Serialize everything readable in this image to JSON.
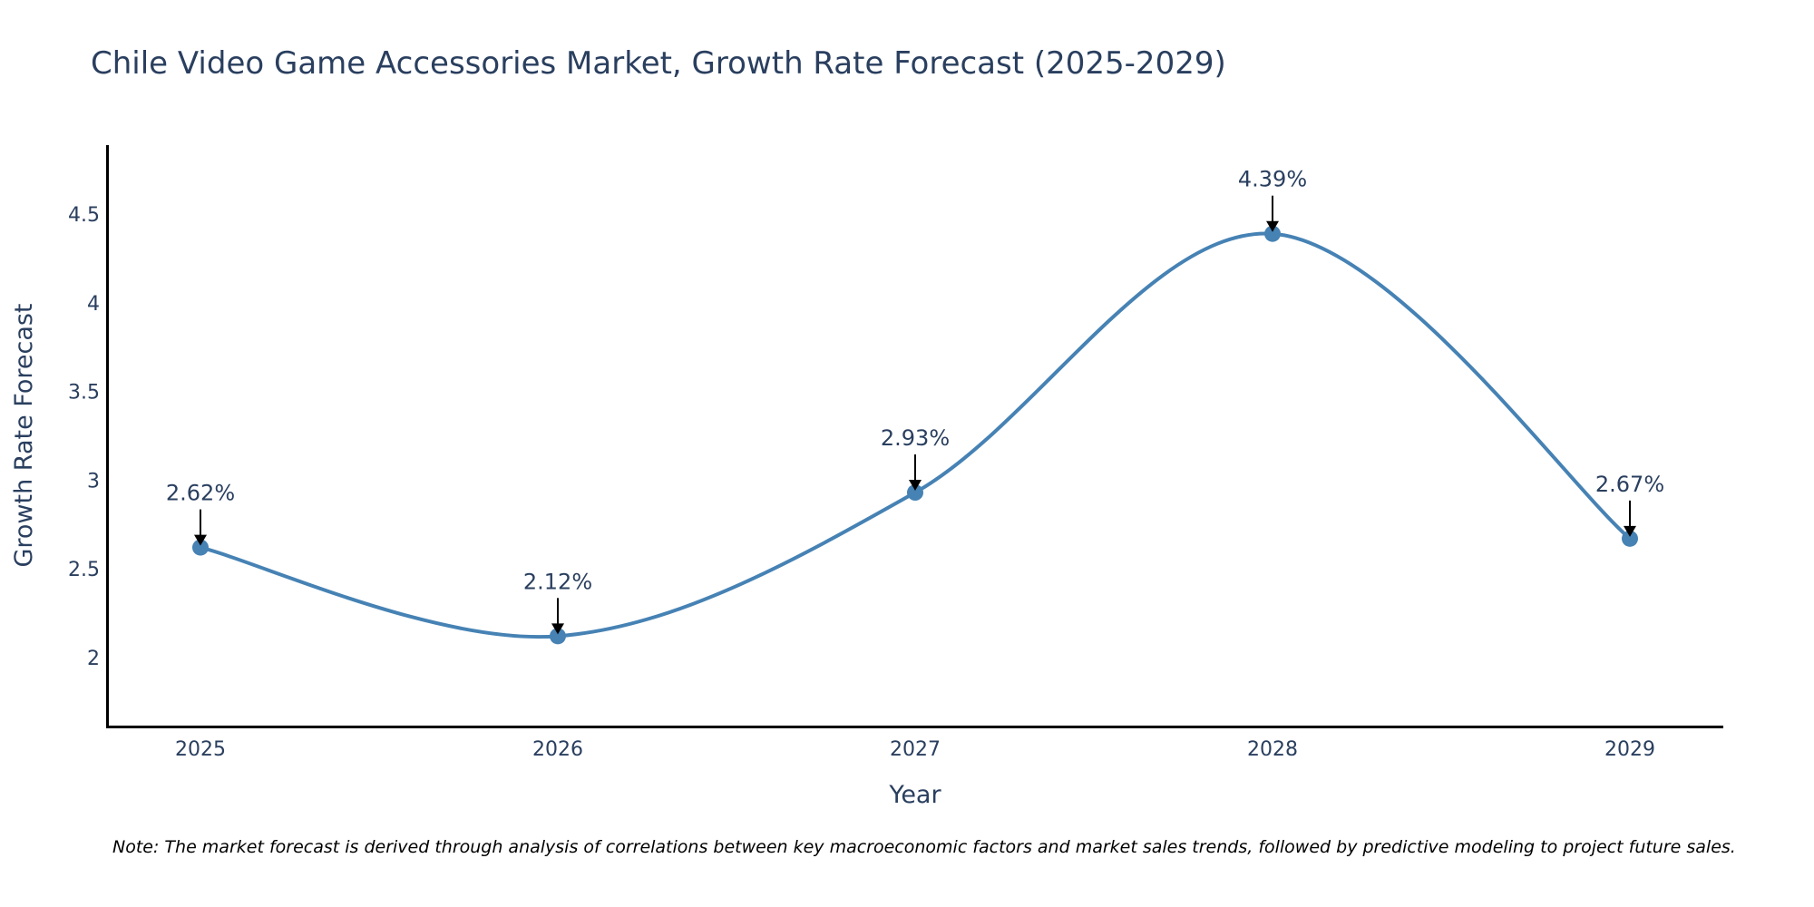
{
  "chart_data": {
    "type": "line",
    "title": "Chile Video Game Accessories Market, Growth Rate Forecast (2025-2029)",
    "xlabel": "Year",
    "ylabel": "Growth Rate Forecast",
    "categories": [
      "2025",
      "2026",
      "2027",
      "2028",
      "2029"
    ],
    "values": [
      2.62,
      2.12,
      2.93,
      4.39,
      2.67
    ],
    "data_labels": [
      "2.62%",
      "2.12%",
      "2.93%",
      "4.39%",
      "2.67%"
    ],
    "y_ticks": [
      2,
      2.5,
      3,
      3.5,
      4,
      4.5
    ],
    "y_tick_labels": [
      "2",
      "2.5",
      "3",
      "3.5",
      "4",
      "4.5"
    ],
    "ylim": [
      1.61,
      4.89
    ],
    "line_color": "#4682b4",
    "marker_color": "#4682b4",
    "grid": false,
    "note": "Note: The market forecast is derived through analysis of correlations between key macroeconomic factors and market sales trends, followed by predictive modeling to project future sales."
  }
}
